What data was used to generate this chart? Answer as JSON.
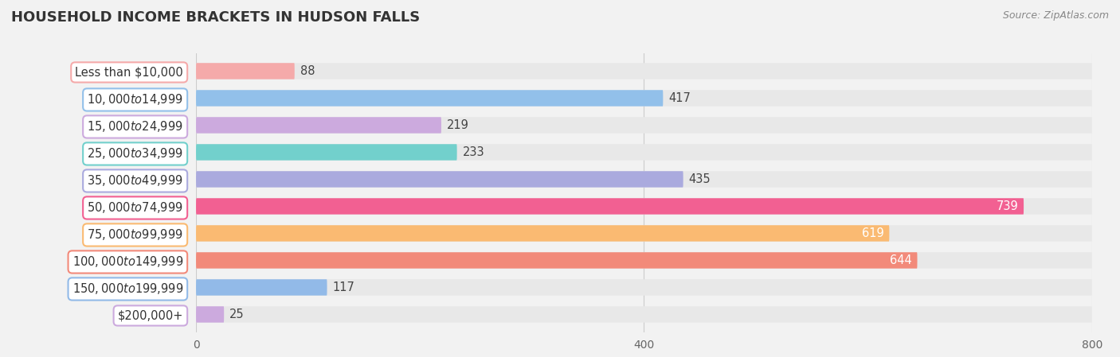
{
  "title": "HOUSEHOLD INCOME BRACKETS IN HUDSON FALLS",
  "source": "Source: ZipAtlas.com",
  "categories": [
    "Less than $10,000",
    "$10,000 to $14,999",
    "$15,000 to $24,999",
    "$25,000 to $34,999",
    "$35,000 to $49,999",
    "$50,000 to $74,999",
    "$75,000 to $99,999",
    "$100,000 to $149,999",
    "$150,000 to $199,999",
    "$200,000+"
  ],
  "values": [
    88,
    417,
    219,
    233,
    435,
    739,
    619,
    644,
    117,
    25
  ],
  "bar_colors": [
    "#F5AAAA",
    "#92C0EA",
    "#CCAADE",
    "#72D0CC",
    "#AAAADE",
    "#F26092",
    "#FABA72",
    "#F28A7A",
    "#92BAE8",
    "#CCAADE"
  ],
  "xlim": [
    0,
    800
  ],
  "xticks": [
    0,
    400,
    800
  ],
  "background_color": "#f2f2f2",
  "bar_bg_color": "#e8e8e8",
  "white_pill_color": "#ffffff",
  "title_fontsize": 13,
  "label_fontsize": 10.5,
  "tick_fontsize": 10,
  "source_fontsize": 9,
  "value_fontsize": 10.5
}
